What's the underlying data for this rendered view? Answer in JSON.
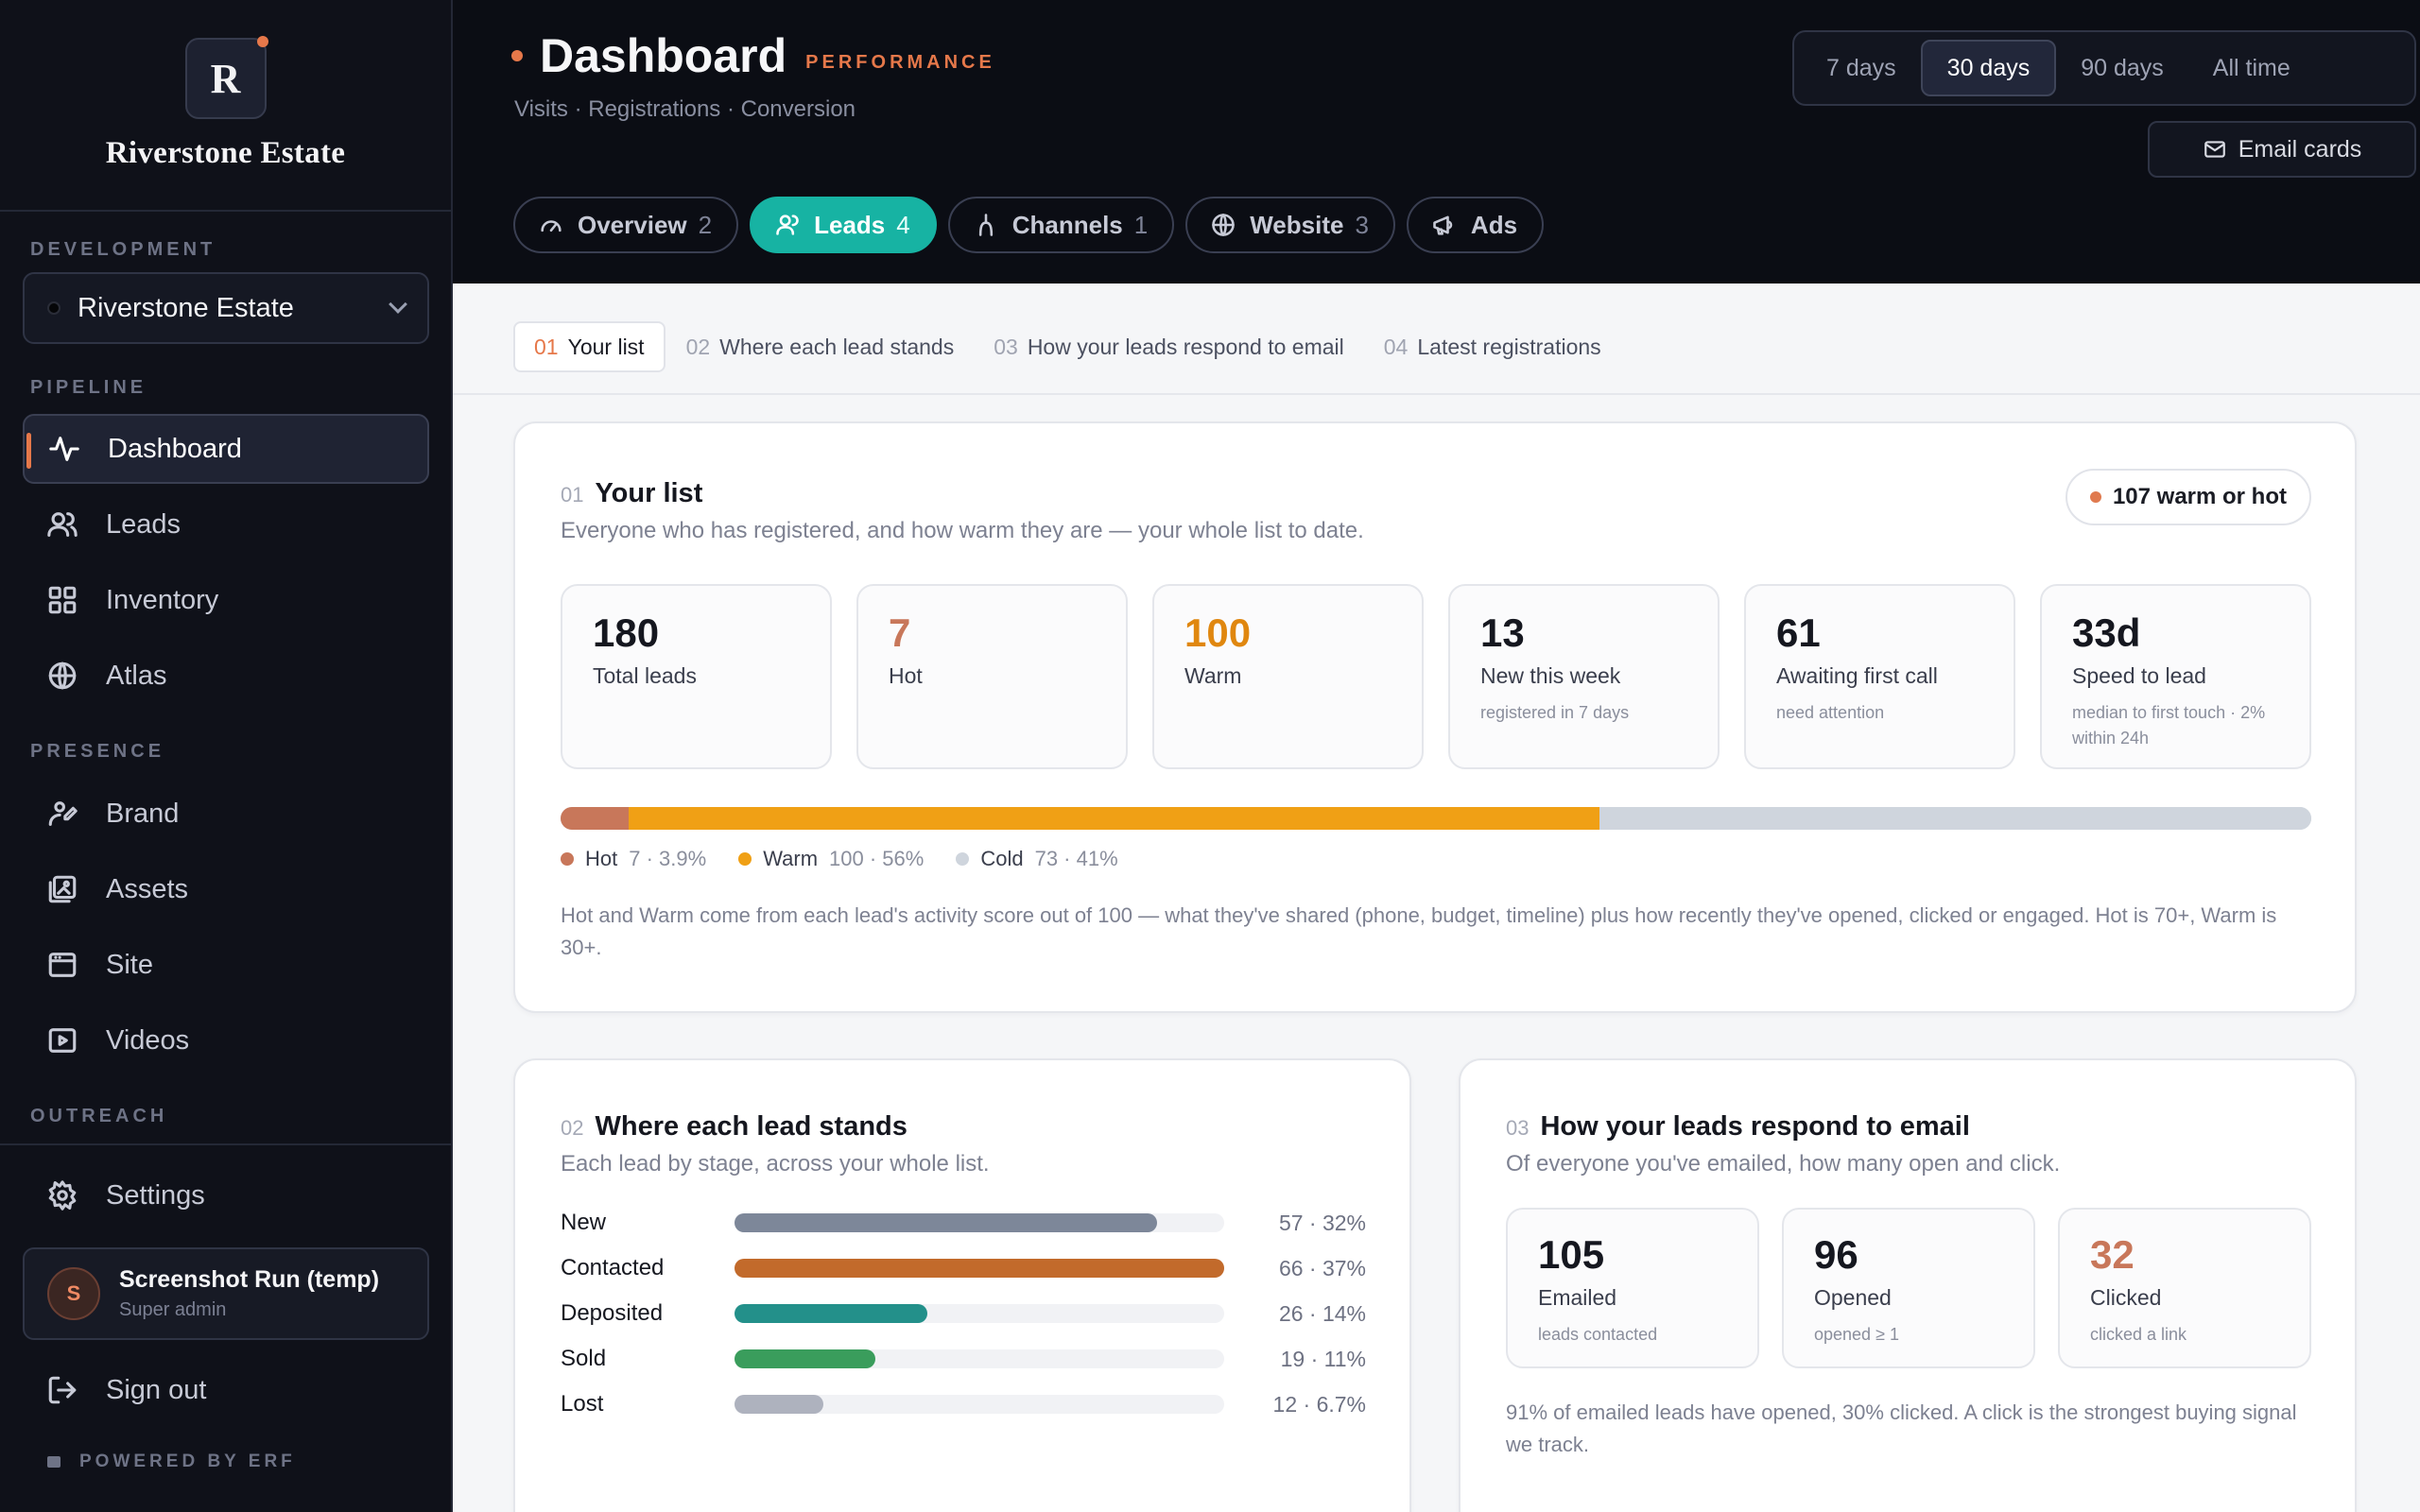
{
  "brand": {
    "initial": "R",
    "name": "Riverstone Estate"
  },
  "sidebar": {
    "development_label": "DEVELOPMENT",
    "development_value": "Riverstone Estate",
    "pipeline_label": "PIPELINE",
    "presence_label": "PRESENCE",
    "outreach_label": "OUTREACH",
    "items": [
      {
        "label": "Dashboard",
        "icon": "activity-icon"
      },
      {
        "label": "Leads",
        "icon": "users-icon"
      },
      {
        "label": "Inventory",
        "icon": "grid-icon"
      },
      {
        "label": "Atlas",
        "icon": "globe-icon"
      },
      {
        "label": "Brand",
        "icon": "palette-icon"
      },
      {
        "label": "Assets",
        "icon": "images-icon"
      },
      {
        "label": "Site",
        "icon": "browser-icon"
      },
      {
        "label": "Videos",
        "icon": "video-icon"
      }
    ],
    "settings_label": "Settings",
    "user": {
      "initial": "S",
      "name": "Screenshot Run (temp)",
      "role": "Super admin"
    },
    "signout_label": "Sign out",
    "powered": "POWERED BY ERF"
  },
  "header": {
    "title": "Dashboard",
    "tag": "PERFORMANCE",
    "subtitle": "Visits · Registrations · Conversion",
    "ranges": [
      "7 days",
      "30 days",
      "90 days",
      "All time"
    ],
    "active_range": "30 days",
    "email_cards": "Email cards",
    "tabs": [
      {
        "label": "Overview",
        "count": "2",
        "icon": "gauge-icon"
      },
      {
        "label": "Leads",
        "count": "4",
        "icon": "users-icon"
      },
      {
        "label": "Channels",
        "count": "1",
        "icon": "fork-icon"
      },
      {
        "label": "Website",
        "count": "3",
        "icon": "globe-icon"
      },
      {
        "label": "Ads",
        "count": "",
        "icon": "megaphone-icon"
      }
    ]
  },
  "subnav": [
    {
      "num": "01",
      "label": "Your list"
    },
    {
      "num": "02",
      "label": "Where each lead stands"
    },
    {
      "num": "03",
      "label": "How your leads respond to email"
    },
    {
      "num": "04",
      "label": "Latest registrations"
    }
  ],
  "your_list": {
    "num": "01",
    "title": "Your list",
    "subtitle": "Everyone who has registered, and how warm they are — your whole list to date.",
    "pill": "107 warm or hot",
    "stats": [
      {
        "value": "180",
        "label": "Total leads",
        "note": ""
      },
      {
        "value": "7",
        "label": "Hot",
        "note": ""
      },
      {
        "value": "100",
        "label": "Warm",
        "note": ""
      },
      {
        "value": "13",
        "label": "New this week",
        "note": "registered in 7 days"
      },
      {
        "value": "61",
        "label": "Awaiting first call",
        "note": "need attention"
      },
      {
        "value": "33d",
        "label": "Speed to lead",
        "note": "median to first touch · 2% within 24h"
      }
    ],
    "segments": [
      {
        "label": "Hot",
        "value": "7 · 3.9%",
        "share": 3.9,
        "color": "#c8775a"
      },
      {
        "label": "Warm",
        "value": "100 · 56%",
        "share": 56,
        "color": "#f0a015"
      },
      {
        "label": "Cold",
        "value": "73 · 41%",
        "share": 41,
        "color": "#cfd5dd"
      }
    ],
    "note": "Hot and Warm come from each lead's activity score out of 100 — what they've shared (phone, budget, timeline) plus how recently they've opened, clicked or engaged. Hot is 70+, Warm is 30+."
  },
  "stages": {
    "num": "02",
    "title": "Where each lead stands",
    "subtitle": "Each lead by stage, across your whole list.",
    "rows": [
      {
        "name": "New",
        "value": "57 · 32%",
        "count": 57,
        "color": "#7d8799"
      },
      {
        "name": "Contacted",
        "value": "66 · 37%",
        "count": 66,
        "color": "#c26a2b"
      },
      {
        "name": "Deposited",
        "value": "26 · 14%",
        "count": 26,
        "color": "#23908a"
      },
      {
        "name": "Sold",
        "value": "19 · 11%",
        "count": 19,
        "color": "#3a9d5c"
      },
      {
        "name": "Lost",
        "value": "12 · 6.7%",
        "count": 12,
        "color": "#aeb2be"
      }
    ]
  },
  "email": {
    "num": "03",
    "title": "How your leads respond to email",
    "subtitle": "Of everyone you've emailed, how many open and click.",
    "stats": [
      {
        "value": "105",
        "label": "Emailed",
        "note": "leads contacted"
      },
      {
        "value": "96",
        "label": "Opened",
        "note": "opened ≥ 1"
      },
      {
        "value": "32",
        "label": "Clicked",
        "note": "clicked a link"
      }
    ],
    "note": "91% of emailed leads have opened, 30% clicked. A click is the strongest buying signal we track."
  },
  "colors": {
    "accent": "#e6784a",
    "teal": "#17b3a3",
    "hot": "#c8775a",
    "warm": "#e0870f",
    "clicked": "#c8775a"
  }
}
